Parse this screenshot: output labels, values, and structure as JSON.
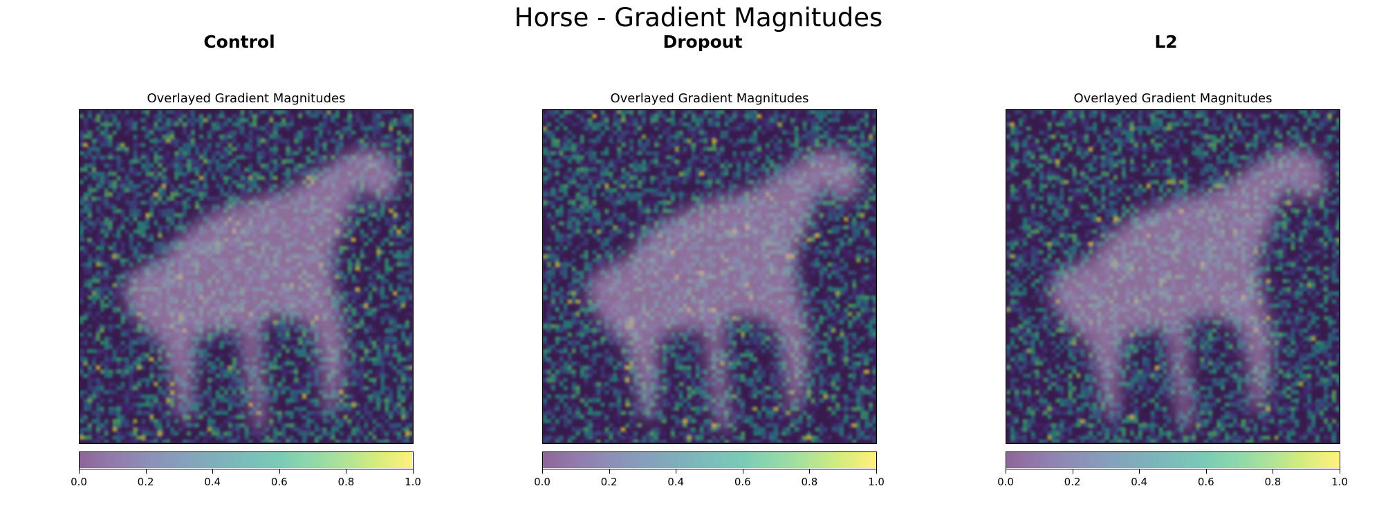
{
  "chart_data": {
    "type": "heatmap",
    "title": "Horse - Gradient Magnitudes",
    "colormap": "viridis",
    "overlay_alpha": 0.6,
    "panels": [
      {
        "column_title": "Control",
        "axes_title": "Overlayed Gradient Magnitudes",
        "colorbar": {
          "range": [
            0.0,
            1.0
          ],
          "ticks": [
            "0.0",
            "0.2",
            "0.4",
            "0.6",
            "0.8",
            "1.0"
          ]
        },
        "seed": 11,
        "hotspot_density": 1.0
      },
      {
        "column_title": "Dropout",
        "axes_title": "Overlayed Gradient Magnitudes",
        "colorbar": {
          "range": [
            0.0,
            1.0
          ],
          "ticks": [
            "0.0",
            "0.2",
            "0.4",
            "0.6",
            "0.8",
            "1.0"
          ]
        },
        "seed": 29,
        "hotspot_density": 0.9
      },
      {
        "column_title": "L2",
        "axes_title": "Overlayed Gradient Magnitudes",
        "colorbar": {
          "range": [
            0.0,
            1.0
          ],
          "ticks": [
            "0.0",
            "0.2",
            "0.4",
            "0.6",
            "0.8",
            "1.0"
          ]
        },
        "seed": 47,
        "hotspot_density": 0.7
      }
    ]
  }
}
